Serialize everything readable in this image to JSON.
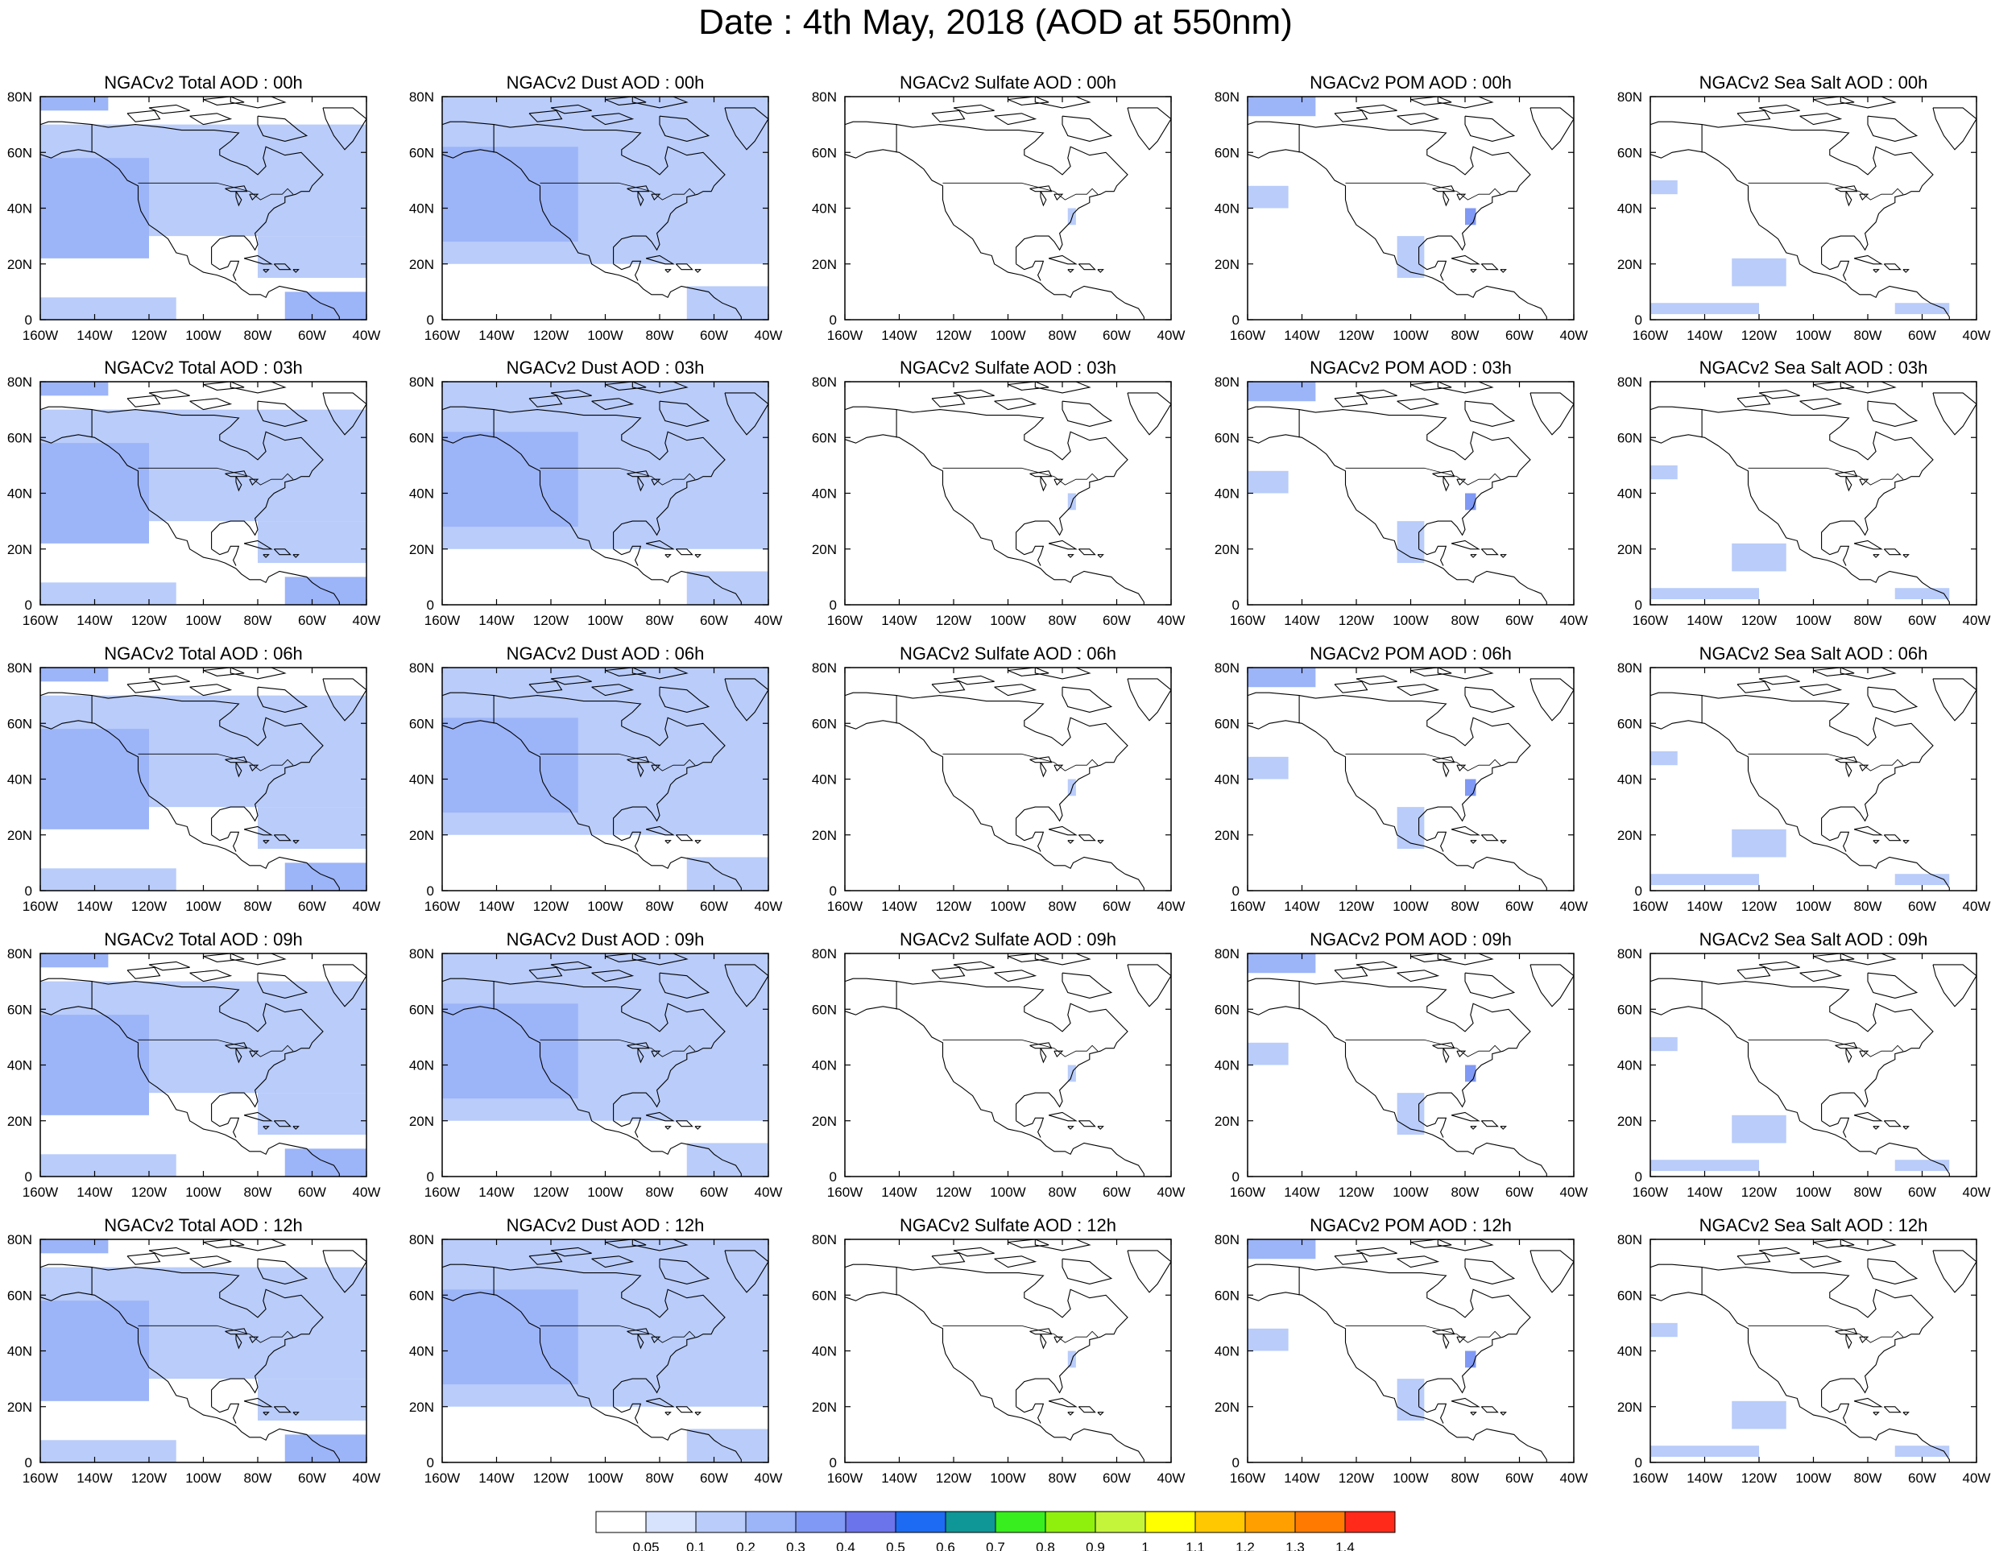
{
  "title": "Date : 4th May, 2018 (AOD at 550nm)",
  "colors": {
    "background": "#ffffff",
    "coastline": "#000000",
    "scale": [
      "#ffffff",
      "#d7e2fc",
      "#b9ccfa",
      "#9cb4f8",
      "#8099f4",
      "#6b74ea",
      "#1d6bf2",
      "#0f9696",
      "#38ee1e",
      "#8ff00e",
      "#c5f53a",
      "#ffff00",
      "#ffc800",
      "#ffa000",
      "#ff7a00",
      "#ff2a1a"
    ]
  },
  "colorbar": {
    "labels": [
      "0.05",
      "0.1",
      "0.2",
      "0.3",
      "0.4",
      "0.5",
      "0.6",
      "0.7",
      "0.8",
      "0.9",
      "1",
      "1.1",
      "1.2",
      "1.3",
      "1.4"
    ]
  },
  "axes": {
    "x_ticks": [
      "160W",
      "140W",
      "120W",
      "100W",
      "80W",
      "60W",
      "40W"
    ],
    "y_ticks": [
      "0",
      "20N",
      "40N",
      "60N",
      "80N"
    ],
    "xlim": [
      -160,
      -40
    ],
    "ylim": [
      0,
      80
    ]
  },
  "panels": [
    [
      "NGACv2 Total AOD : 00h",
      "NGACv2 Dust AOD : 00h",
      "NGACv2 Sulfate AOD : 00h",
      "NGACv2 POM AOD : 00h",
      "NGACv2 Sea Salt AOD : 00h"
    ],
    [
      "NGACv2 Total AOD : 03h",
      "NGACv2 Dust AOD : 03h",
      "NGACv2 Sulfate AOD : 03h",
      "NGACv2 POM AOD : 03h",
      "NGACv2 Sea Salt AOD : 03h"
    ],
    [
      "NGACv2 Total AOD : 06h",
      "NGACv2 Dust AOD : 06h",
      "NGACv2 Sulfate AOD : 06h",
      "NGACv2 POM AOD : 06h",
      "NGACv2 Sea Salt AOD : 06h"
    ],
    [
      "NGACv2 Total AOD : 09h",
      "NGACv2 Dust AOD : 09h",
      "NGACv2 Sulfate AOD : 09h",
      "NGACv2 POM AOD : 09h",
      "NGACv2 Sea Salt  AOD : 09h"
    ],
    [
      "NGACv2 Total AOD  : 12h",
      "NGACv2 Dust AOD : 12h",
      "NGACv2 Sulfate AOD : 12h",
      "NGACv2 POM  AOD : 12h",
      "NGACv2 Sea Salt  AOD : 12h"
    ]
  ],
  "chart_data": {
    "type": "heatmap",
    "title": "Date : 4th May, 2018 (AOD at 550nm)",
    "xlabel": "",
    "ylabel": "",
    "xlim": [
      -160,
      -40
    ],
    "ylim": [
      0,
      80
    ],
    "grid": false,
    "legend": "bottom",
    "colorbar_levels": [
      0.05,
      0.1,
      0.2,
      0.3,
      0.4,
      0.5,
      0.6,
      0.7,
      0.8,
      0.9,
      1,
      1.1,
      1.2,
      1.3,
      1.4
    ],
    "rows_forecast_hours": [
      "00h",
      "03h",
      "06h",
      "09h",
      "12h"
    ],
    "columns_species": [
      "Total",
      "Dust",
      "Sulfate",
      "POM",
      "Sea Salt"
    ],
    "field_regions": {
      "Total": [
        {
          "lon": [
            -160,
            -40
          ],
          "lat": [
            30,
            70
          ],
          "aod": 0.1
        },
        {
          "lon": [
            -160,
            -120
          ],
          "lat": [
            22,
            58
          ],
          "aod": 0.2
        },
        {
          "lon": [
            -160,
            -135
          ],
          "lat": [
            75,
            80
          ],
          "aod": 0.2
        },
        {
          "lon": [
            -80,
            -40
          ],
          "lat": [
            15,
            30
          ],
          "aod": 0.1
        },
        {
          "lon": [
            -70,
            -40
          ],
          "lat": [
            0,
            10
          ],
          "aod": 0.2
        },
        {
          "lon": [
            -160,
            -110
          ],
          "lat": [
            0,
            8
          ],
          "aod": 0.1
        }
      ],
      "Dust": [
        {
          "lon": [
            -160,
            -40
          ],
          "lat": [
            20,
            80
          ],
          "aod": 0.1
        },
        {
          "lon": [
            -160,
            -110
          ],
          "lat": [
            28,
            62
          ],
          "aod": 0.2
        },
        {
          "lon": [
            -70,
            -40
          ],
          "lat": [
            0,
            12
          ],
          "aod": 0.1
        }
      ],
      "Sulfate": [
        {
          "lon": [
            -78,
            -75
          ],
          "lat": [
            34,
            40
          ],
          "aod": 0.1
        }
      ],
      "POM": [
        {
          "lon": [
            -160,
            -135
          ],
          "lat": [
            73,
            80
          ],
          "aod": 0.2
        },
        {
          "lon": [
            -160,
            -145
          ],
          "lat": [
            40,
            48
          ],
          "aod": 0.1
        },
        {
          "lon": [
            -105,
            -95
          ],
          "lat": [
            15,
            30
          ],
          "aod": 0.1
        },
        {
          "lon": [
            -80,
            -76
          ],
          "lat": [
            34,
            40
          ],
          "aod": 0.3
        }
      ],
      "Sea Salt": [
        {
          "lon": [
            -160,
            -150
          ],
          "lat": [
            45,
            50
          ],
          "aod": 0.1
        },
        {
          "lon": [
            -130,
            -110
          ],
          "lat": [
            12,
            22
          ],
          "aod": 0.1
        },
        {
          "lon": [
            -160,
            -120
          ],
          "lat": [
            2,
            6
          ],
          "aod": 0.1
        },
        {
          "lon": [
            -70,
            -50
          ],
          "lat": [
            2,
            6
          ],
          "aod": 0.1
        }
      ]
    }
  }
}
